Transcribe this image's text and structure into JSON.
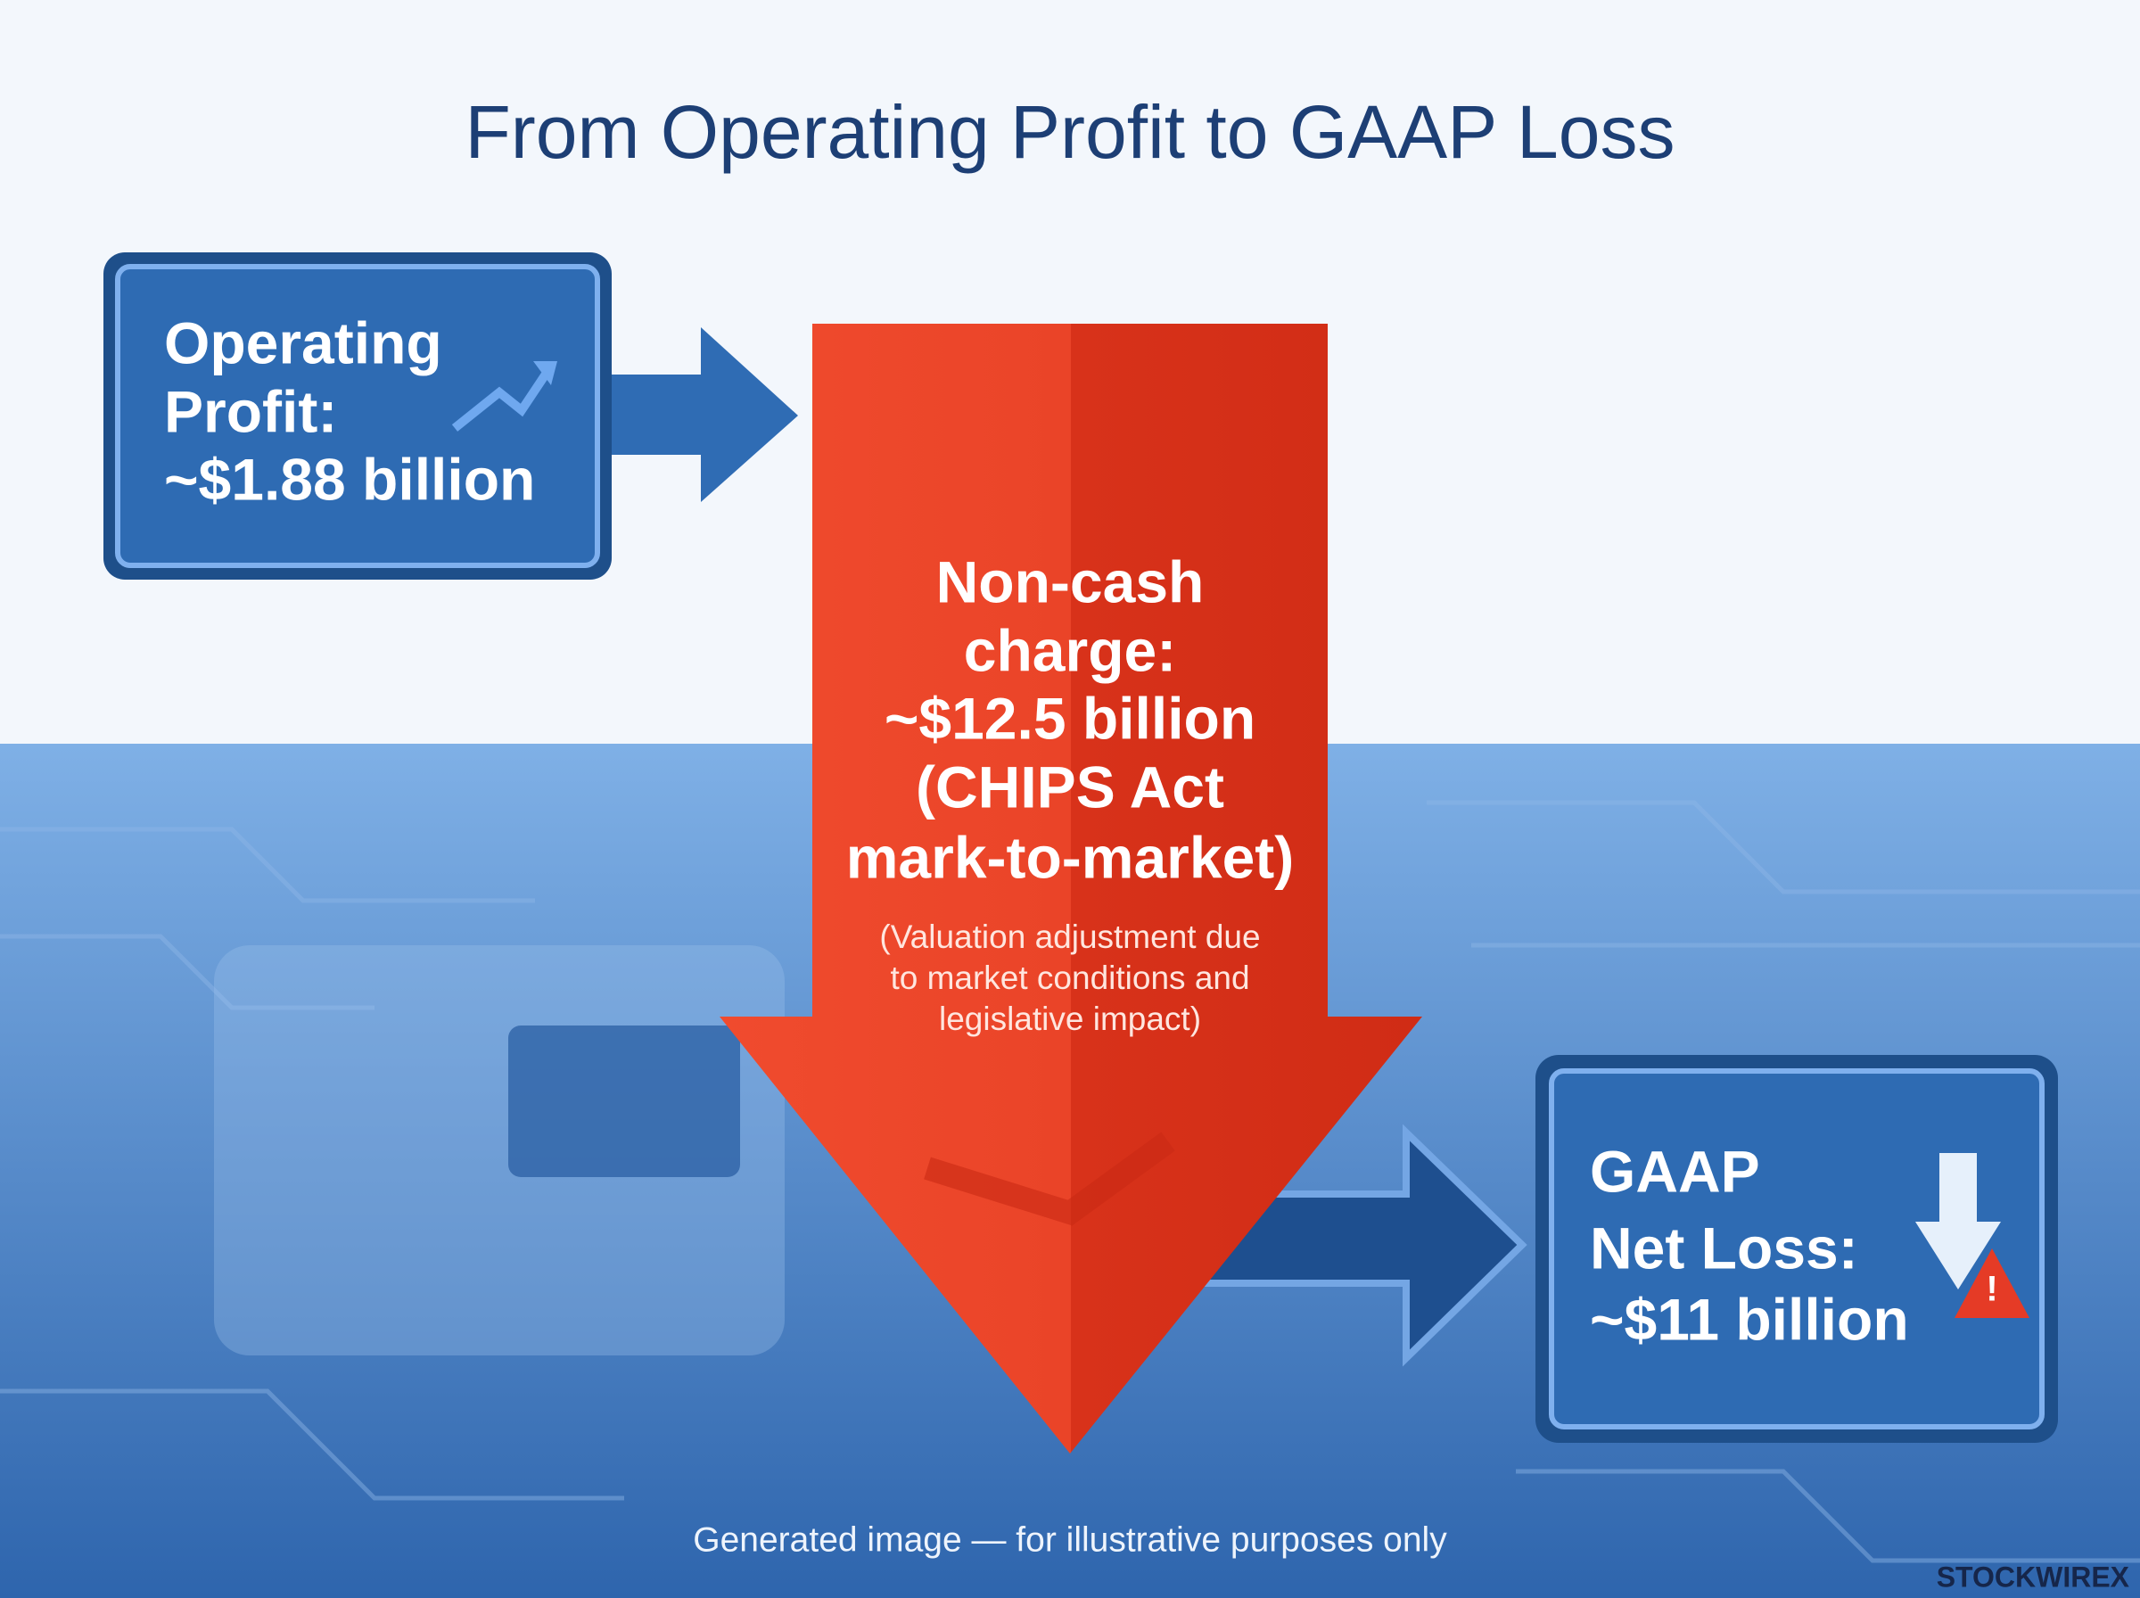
{
  "title": "From Operating Profit to GAAP Loss",
  "nodes": [
    {
      "label_lines": [
        "Operating",
        "Profit:",
        "~$1.88 billion"
      ]
    },
    {
      "label_lines": [
        "Non-cash",
        "charge:",
        "~$12.5 billion",
        "(CHIPS Act",
        "mark-to-market)"
      ],
      "note_lines": [
        "(Valuation adjustment due",
        "to market conditions and",
        "legislative impact)"
      ]
    },
    {
      "label_lines": [
        "GAAP",
        "Net Loss:",
        "~$11 billion"
      ]
    }
  ],
  "footer": {
    "caption": "Generated image — for illustrative purposes only",
    "brand": "STOCKWIREX"
  }
}
